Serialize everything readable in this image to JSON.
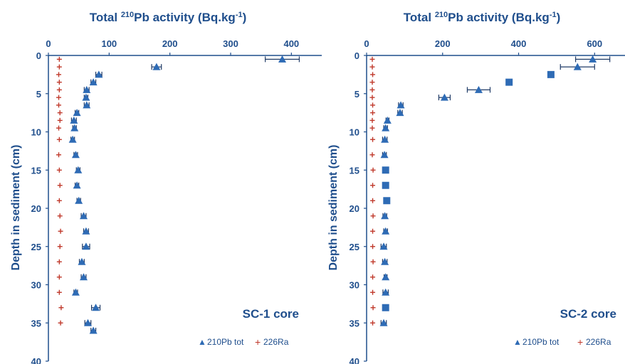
{
  "chart_data": [
    {
      "type": "scatter",
      "title_prefix": "Total ",
      "title_sup1": "210",
      "title_mid": "Pb activity (Bq.kg",
      "title_sup2": "-1",
      "title_suffix": ")",
      "ylabel": "Depth in sediment (cm)",
      "xlim": [
        0,
        450
      ],
      "ylim": [
        0,
        40
      ],
      "xticks": [
        "0",
        "100",
        "200",
        "300",
        "400"
      ],
      "yticks": [
        "0",
        "5",
        "10",
        "15",
        "20",
        "25",
        "30",
        "35",
        "40"
      ],
      "annotation": "SC-1 core",
      "legend": [
        "210Pb tot",
        "226Ra"
      ],
      "legend_position": "bottom-right",
      "series": [
        {
          "name": "210Pb tot",
          "marker": "triangle",
          "color": "#2e6bb5",
          "points": [
            {
              "x": 385,
              "y": 0.5,
              "err": 28
            },
            {
              "x": 178,
              "y": 1.5,
              "err": 8
            },
            {
              "x": 83,
              "y": 2.5,
              "err": 5
            },
            {
              "x": 74,
              "y": 3.5,
              "err": 4
            },
            {
              "x": 63,
              "y": 4.5,
              "err": 4
            },
            {
              "x": 62,
              "y": 5.5,
              "err": 3
            },
            {
              "x": 63,
              "y": 6.5,
              "err": 4
            },
            {
              "x": 47,
              "y": 7.5,
              "err": 3
            },
            {
              "x": 42,
              "y": 8.5,
              "err": 4
            },
            {
              "x": 43,
              "y": 9.5,
              "err": 3
            },
            {
              "x": 40,
              "y": 11,
              "err": 3
            },
            {
              "x": 45,
              "y": 13,
              "err": 3
            },
            {
              "x": 49,
              "y": 15,
              "err": 3
            },
            {
              "x": 47,
              "y": 17,
              "err": 3
            },
            {
              "x": 50,
              "y": 19,
              "err": 3
            },
            {
              "x": 58,
              "y": 21,
              "err": 4
            },
            {
              "x": 62,
              "y": 23,
              "err": 4
            },
            {
              "x": 62,
              "y": 25,
              "err": 6
            },
            {
              "x": 55,
              "y": 27,
              "err": 4
            },
            {
              "x": 58,
              "y": 29,
              "err": 4
            },
            {
              "x": 45,
              "y": 31,
              "err": 3
            },
            {
              "x": 78,
              "y": 33,
              "err": 7
            },
            {
              "x": 65,
              "y": 35,
              "err": 5
            },
            {
              "x": 74,
              "y": 36,
              "err": 4
            }
          ]
        },
        {
          "name": "226Ra",
          "marker": "plus",
          "color": "#c0392b",
          "points": [
            {
              "x": 18,
              "y": 0.5
            },
            {
              "x": 18,
              "y": 1.5
            },
            {
              "x": 17,
              "y": 2.5
            },
            {
              "x": 18,
              "y": 3.5
            },
            {
              "x": 18,
              "y": 4.5
            },
            {
              "x": 17,
              "y": 5.5
            },
            {
              "x": 17,
              "y": 6.5
            },
            {
              "x": 19,
              "y": 7.5
            },
            {
              "x": 19,
              "y": 8.5
            },
            {
              "x": 17,
              "y": 9.5
            },
            {
              "x": 18,
              "y": 11
            },
            {
              "x": 17,
              "y": 13
            },
            {
              "x": 18,
              "y": 15
            },
            {
              "x": 19,
              "y": 17
            },
            {
              "x": 18,
              "y": 19
            },
            {
              "x": 19,
              "y": 21
            },
            {
              "x": 20,
              "y": 23
            },
            {
              "x": 19,
              "y": 25
            },
            {
              "x": 18,
              "y": 27
            },
            {
              "x": 18,
              "y": 29
            },
            {
              "x": 18,
              "y": 31
            },
            {
              "x": 21,
              "y": 33
            },
            {
              "x": 20,
              "y": 35
            }
          ]
        }
      ]
    },
    {
      "type": "scatter",
      "title_prefix": "Total ",
      "title_sup1": "210",
      "title_mid": "Pb activity (Bq.kg",
      "title_sup2": "-1",
      "title_suffix": ")",
      "ylabel": "Depth in sediment (cm)",
      "xlim": [
        0,
        680
      ],
      "ylim": [
        0,
        40
      ],
      "xticks": [
        "0",
        "200",
        "400",
        "600"
      ],
      "yticks": [
        "0",
        "5",
        "10",
        "15",
        "20",
        "25",
        "30",
        "35",
        "40"
      ],
      "annotation": "SC-2 core",
      "legend": [
        "210Pb tot",
        "226Ra"
      ],
      "legend_position": "bottom-right",
      "series": [
        {
          "name": "210Pb tot",
          "marker": "triangle",
          "color": "#2e6bb5",
          "points": [
            {
              "x": 595,
              "y": 0.5,
              "err": 45
            },
            {
              "x": 555,
              "y": 1.5,
              "err": 45
            },
            {
              "x": 485,
              "y": 2.5,
              "err": 0,
              "marker": "square"
            },
            {
              "x": 375,
              "y": 3.5,
              "err": 0,
              "marker": "square"
            },
            {
              "x": 295,
              "y": 4.5,
              "err": 30
            },
            {
              "x": 205,
              "y": 5.5,
              "err": 15
            },
            {
              "x": 90,
              "y": 6.5,
              "err": 6
            },
            {
              "x": 88,
              "y": 7.5,
              "err": 6
            },
            {
              "x": 55,
              "y": 8.5,
              "err": 4
            },
            {
              "x": 50,
              "y": 9.5,
              "err": 5
            },
            {
              "x": 48,
              "y": 11,
              "err": 6
            },
            {
              "x": 47,
              "y": 13,
              "err": 5
            },
            {
              "x": 50,
              "y": 15,
              "err": 0,
              "marker": "square"
            },
            {
              "x": 50,
              "y": 17,
              "err": 0,
              "marker": "square"
            },
            {
              "x": 53,
              "y": 19,
              "err": 0,
              "marker": "square"
            },
            {
              "x": 48,
              "y": 21,
              "err": 5
            },
            {
              "x": 50,
              "y": 23,
              "err": 5
            },
            {
              "x": 45,
              "y": 25,
              "err": 7
            },
            {
              "x": 48,
              "y": 27,
              "err": 6
            },
            {
              "x": 50,
              "y": 29,
              "err": 4
            },
            {
              "x": 50,
              "y": 31,
              "err": 7
            },
            {
              "x": 50,
              "y": 33,
              "err": 0,
              "marker": "square"
            },
            {
              "x": 45,
              "y": 35,
              "err": 7
            }
          ]
        },
        {
          "name": "226Ra",
          "marker": "plus",
          "color": "#c0392b",
          "points": [
            {
              "x": 15,
              "y": 0.5
            },
            {
              "x": 15,
              "y": 1.5
            },
            {
              "x": 16,
              "y": 2.5
            },
            {
              "x": 15,
              "y": 3.5
            },
            {
              "x": 15,
              "y": 4.5
            },
            {
              "x": 15,
              "y": 5.5
            },
            {
              "x": 16,
              "y": 6.5
            },
            {
              "x": 16,
              "y": 7.5
            },
            {
              "x": 15,
              "y": 8.5
            },
            {
              "x": 15,
              "y": 9.5
            },
            {
              "x": 16,
              "y": 11
            },
            {
              "x": 15,
              "y": 13
            },
            {
              "x": 17,
              "y": 15
            },
            {
              "x": 16,
              "y": 17
            },
            {
              "x": 16,
              "y": 19
            },
            {
              "x": 17,
              "y": 21
            },
            {
              "x": 16,
              "y": 23
            },
            {
              "x": 16,
              "y": 25
            },
            {
              "x": 17,
              "y": 27
            },
            {
              "x": 16,
              "y": 29
            },
            {
              "x": 16,
              "y": 31
            },
            {
              "x": 17,
              "y": 33
            },
            {
              "x": 16,
              "y": 35
            }
          ]
        }
      ]
    }
  ]
}
